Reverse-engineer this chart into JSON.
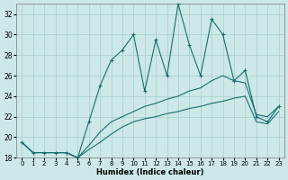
{
  "xlabel": "Humidex (Indice chaleur)",
  "bg_color": "#cce8e8",
  "grid_color": "#aacccc",
  "line_color": "#1a6e6e",
  "xlim": [
    -0.5,
    23.5
  ],
  "ylim": [
    18,
    33
  ],
  "xticks": [
    0,
    1,
    2,
    3,
    4,
    5,
    6,
    7,
    8,
    9,
    10,
    11,
    12,
    13,
    14,
    15,
    16,
    17,
    18,
    19,
    20,
    21,
    22,
    23
  ],
  "yticks": [
    18,
    20,
    22,
    24,
    26,
    28,
    30,
    32
  ],
  "s1_x": [
    0,
    1,
    2,
    3,
    4,
    5,
    6,
    7,
    8,
    9,
    10,
    11,
    12,
    13,
    14,
    15,
    16,
    17,
    18,
    19,
    20,
    21,
    22,
    23
  ],
  "s1_y": [
    19.5,
    18.5,
    18.5,
    18.5,
    18.5,
    18.0,
    21.5,
    25.0,
    27.5,
    28.5,
    30.0,
    24.5,
    29.5,
    26.0,
    33.0,
    29.0,
    26.0,
    31.5,
    30.0,
    25.5,
    26.5,
    22.0,
    21.5,
    23.0
  ],
  "s2_x": [
    0,
    1,
    2,
    3,
    4,
    5,
    6,
    7,
    8,
    9,
    10,
    11,
    12,
    13,
    14,
    15,
    16,
    17,
    18,
    19,
    20,
    21,
    22,
    23
  ],
  "s2_y": [
    19.5,
    18.5,
    18.5,
    18.5,
    18.5,
    18.0,
    19.2,
    20.5,
    21.5,
    22.0,
    22.5,
    23.0,
    23.3,
    23.7,
    24.0,
    24.5,
    24.8,
    25.5,
    26.0,
    25.5,
    25.3,
    22.2,
    22.0,
    23.0
  ],
  "s3_x": [
    0,
    1,
    2,
    3,
    4,
    5,
    6,
    7,
    8,
    9,
    10,
    11,
    12,
    13,
    14,
    15,
    16,
    17,
    18,
    19,
    20,
    21,
    22,
    23
  ],
  "s3_y": [
    19.5,
    18.5,
    18.5,
    18.5,
    18.5,
    18.0,
    18.8,
    19.5,
    20.3,
    21.0,
    21.5,
    21.8,
    22.0,
    22.3,
    22.5,
    22.8,
    23.0,
    23.3,
    23.5,
    23.8,
    24.0,
    21.5,
    21.3,
    22.5
  ]
}
